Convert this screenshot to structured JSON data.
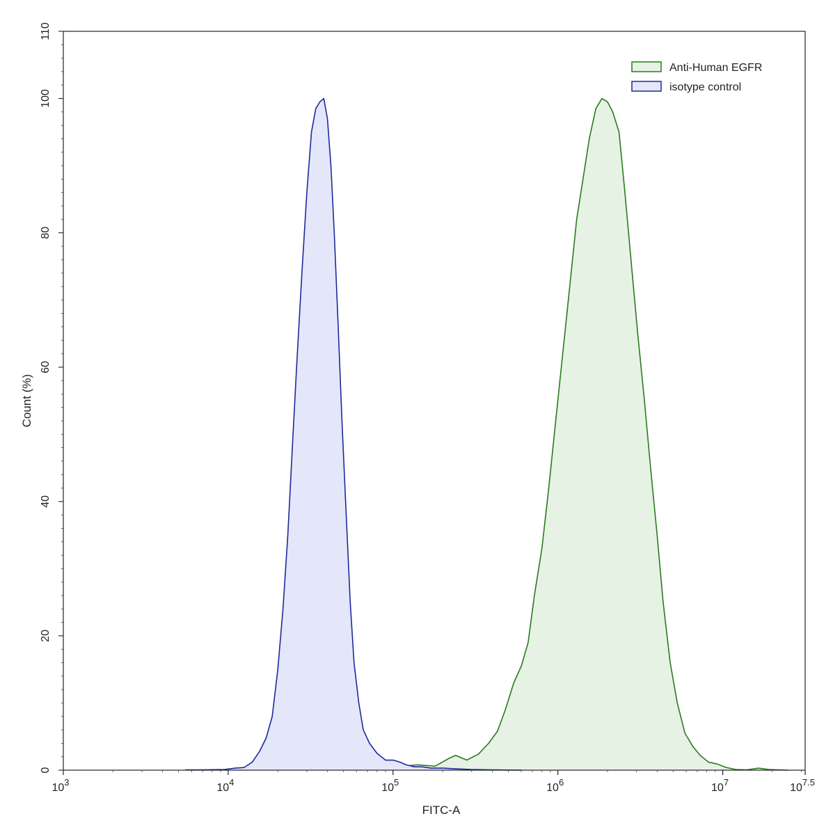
{
  "chart_data": {
    "type": "area",
    "xlabel": "FITC-A",
    "ylabel": "Count  (%)",
    "x_scale": "log10",
    "xlim": [
      1000,
      31622776.6
    ],
    "ylim": [
      0,
      110
    ],
    "x_ticks": [
      {
        "value": 1000,
        "base": "10",
        "exp": "3"
      },
      {
        "value": 10000,
        "base": "10",
        "exp": "4"
      },
      {
        "value": 100000,
        "base": "10",
        "exp": "5"
      },
      {
        "value": 1000000,
        "base": "10",
        "exp": "6"
      },
      {
        "value": 10000000,
        "base": "10",
        "exp": "7"
      },
      {
        "value": 31622776.6,
        "base": "10",
        "exp": "7.5"
      }
    ],
    "y_ticks": [
      0,
      20,
      40,
      60,
      80,
      100,
      110
    ],
    "grid": false,
    "legend_position": "top-right",
    "series": [
      {
        "name": "Anti-Human EGFR",
        "color": "#2a7a1e",
        "fill": "#e6f2e4",
        "points": [
          [
            60000,
            0.1
          ],
          [
            100000,
            0.4
          ],
          [
            140000,
            0.8
          ],
          [
            180000,
            0.6
          ],
          [
            220000,
            1.8
          ],
          [
            240000,
            2.2
          ],
          [
            280000,
            1.5
          ],
          [
            330000,
            2.4
          ],
          [
            380000,
            4.0
          ],
          [
            430000,
            5.8
          ],
          [
            480000,
            9.0
          ],
          [
            540000,
            13.0
          ],
          [
            600000,
            15.5
          ],
          [
            660000,
            19.0
          ],
          [
            720000,
            26.0
          ],
          [
            800000,
            33.0
          ],
          [
            880000,
            42.0
          ],
          [
            970000,
            52.0
          ],
          [
            1070000,
            62.0
          ],
          [
            1180000,
            72.0
          ],
          [
            1300000,
            82.0
          ],
          [
            1420000,
            88.0
          ],
          [
            1550000,
            94.0
          ],
          [
            1700000,
            98.5
          ],
          [
            1850000,
            100.0
          ],
          [
            2000000,
            99.5
          ],
          [
            2150000,
            98.0
          ],
          [
            2350000,
            95.0
          ],
          [
            2550000,
            86.0
          ],
          [
            2800000,
            75.0
          ],
          [
            3050000,
            65.0
          ],
          [
            3350000,
            55.0
          ],
          [
            3650000,
            45.0
          ],
          [
            4000000,
            35.0
          ],
          [
            4350000,
            25.0
          ],
          [
            4800000,
            16.0
          ],
          [
            5300000,
            10.0
          ],
          [
            5900000,
            5.5
          ],
          [
            6600000,
            3.5
          ],
          [
            7300000,
            2.2
          ],
          [
            8200000,
            1.2
          ],
          [
            9300000,
            0.9
          ],
          [
            10500000,
            0.4
          ],
          [
            12000000,
            0.1
          ],
          [
            14000000,
            0.05
          ],
          [
            16500000,
            0.3
          ],
          [
            19000000,
            0.1
          ],
          [
            25000000,
            0.0
          ]
        ]
      },
      {
        "name": "isotype control",
        "color": "#1c2a9a",
        "fill": "#e4e6fa",
        "points": [
          [
            5500,
            0.05
          ],
          [
            7000,
            0.05
          ],
          [
            9500,
            0.1
          ],
          [
            11000,
            0.3
          ],
          [
            12500,
            0.4
          ],
          [
            14000,
            1.2
          ],
          [
            15500,
            2.8
          ],
          [
            17000,
            4.8
          ],
          [
            18500,
            8.0
          ],
          [
            20000,
            15.0
          ],
          [
            21500,
            24.0
          ],
          [
            23000,
            35.0
          ],
          [
            24500,
            48.0
          ],
          [
            26000,
            60.0
          ],
          [
            28000,
            74.0
          ],
          [
            30000,
            86.0
          ],
          [
            32000,
            95.0
          ],
          [
            34000,
            98.5
          ],
          [
            36000,
            99.5
          ],
          [
            38000,
            100.0
          ],
          [
            40000,
            97.0
          ],
          [
            42000,
            90.0
          ],
          [
            44000,
            80.0
          ],
          [
            46500,
            66.0
          ],
          [
            49000,
            52.0
          ],
          [
            52000,
            38.0
          ],
          [
            55000,
            25.0
          ],
          [
            58000,
            16.0
          ],
          [
            62000,
            10.0
          ],
          [
            66000,
            6.0
          ],
          [
            72000,
            4.0
          ],
          [
            80000,
            2.5
          ],
          [
            90000,
            1.5
          ],
          [
            100000,
            1.5
          ],
          [
            110000,
            1.2
          ],
          [
            120000,
            0.8
          ],
          [
            135000,
            0.5
          ],
          [
            150000,
            0.5
          ],
          [
            170000,
            0.3
          ],
          [
            200000,
            0.3
          ],
          [
            240000,
            0.2
          ],
          [
            300000,
            0.1
          ],
          [
            400000,
            0.05
          ],
          [
            600000,
            0.0
          ]
        ]
      }
    ]
  }
}
